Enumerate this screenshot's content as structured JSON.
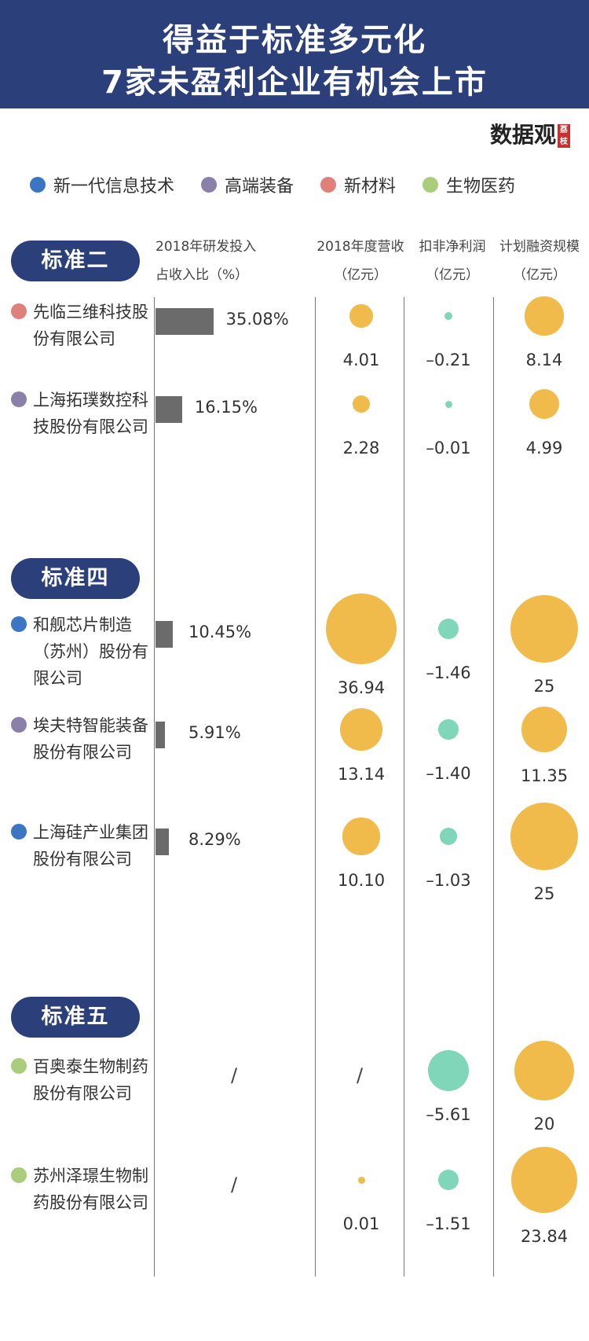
{
  "header": {
    "title_line1": "得益于标准多元化",
    "title_line2": "7家未盈利企业有机会上市"
  },
  "brand": {
    "name": "数据观",
    "tag": "荔枝"
  },
  "legend": [
    {
      "label": "新一代信息技术",
      "color": "#3a76c4"
    },
    {
      "label": "高端装备",
      "color": "#8b80aa"
    },
    {
      "label": "新材料",
      "color": "#e0807a"
    },
    {
      "label": "生物医药",
      "color": "#a9cd7a"
    }
  ],
  "chart_data": {
    "type": "table",
    "columns": [
      {
        "line1": "2018年研发投入",
        "line2": "占收入比（%）"
      },
      {
        "line1": "2018年度营收",
        "line2": "（亿元）"
      },
      {
        "line1": "扣非净利润",
        "line2": "（亿元）"
      },
      {
        "line1": "计划融资规模",
        "line2": "（亿元）"
      }
    ],
    "sections": [
      {
        "label": "标准二",
        "companies": [
          {
            "name": "先临三维科技股份有限公司",
            "category": "新材料",
            "rd_ratio": 35.08,
            "rd_label": "35.08%",
            "revenue": 4.01,
            "revenue_label": "4.01",
            "net_profit": -0.21,
            "net_profit_label": "–0.21",
            "financing": 8.14,
            "financing_label": "8.14"
          },
          {
            "name": "上海拓璞数控科技股份有限公司",
            "category": "高端装备",
            "rd_ratio": 16.15,
            "rd_label": "16.15%",
            "revenue": 2.28,
            "revenue_label": "2.28",
            "net_profit": -0.01,
            "net_profit_label": "–0.01",
            "financing": 4.99,
            "financing_label": "4.99"
          }
        ]
      },
      {
        "label": "标准四",
        "companies": [
          {
            "name": "和舰芯片制造（苏州）股份有限公司",
            "category": "新一代信息技术",
            "rd_ratio": 10.45,
            "rd_label": "10.45%",
            "revenue": 36.94,
            "revenue_label": "36.94",
            "net_profit": -1.46,
            "net_profit_label": "–1.46",
            "financing": 25,
            "financing_label": "25"
          },
          {
            "name": "埃夫特智能装备股份有限公司",
            "category": "高端装备",
            "rd_ratio": 5.91,
            "rd_label": "5.91%",
            "revenue": 13.14,
            "revenue_label": "13.14",
            "net_profit": -1.4,
            "net_profit_label": "–1.40",
            "financing": 11.35,
            "financing_label": "11.35"
          },
          {
            "name": "上海硅产业集团股份有限公司",
            "category": "新一代信息技术",
            "rd_ratio": 8.29,
            "rd_label": "8.29%",
            "revenue": 10.1,
            "revenue_label": "10.10",
            "net_profit": -1.03,
            "net_profit_label": "–1.03",
            "financing": 25,
            "financing_label": "25"
          }
        ]
      },
      {
        "label": "标准五",
        "companies": [
          {
            "name": "百奥泰生物制药股份有限公司",
            "category": "生物医药",
            "rd_ratio": null,
            "rd_label": "/",
            "revenue": null,
            "revenue_label": "/",
            "net_profit": -5.61,
            "net_profit_label": "–5.61",
            "financing": 20,
            "financing_label": "20"
          },
          {
            "name": "苏州泽璟生物制药股份有限公司",
            "category": "生物医药",
            "rd_ratio": null,
            "rd_label": "/",
            "revenue": 0.01,
            "revenue_label": "0.01",
            "net_profit": -1.51,
            "net_profit_label": "–1.51",
            "financing": 23.84,
            "financing_label": "23.84"
          }
        ]
      }
    ]
  },
  "colors": {
    "header_bg": "#2b3f7b",
    "bar": "#6b6b6b",
    "orange_bubble": "#f0bb4b",
    "green_bubble": "#7fd6b8"
  }
}
